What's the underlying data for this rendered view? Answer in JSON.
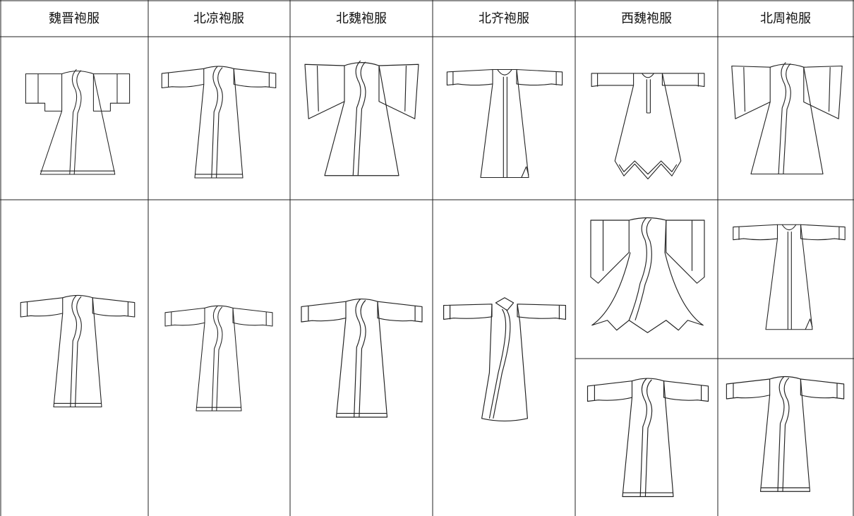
{
  "table": {
    "headers": [
      "魏晋袍服",
      "北凉袍服",
      "北魏袍服",
      "北齐袍服",
      "西魏袍服",
      "北周袍服"
    ]
  }
}
